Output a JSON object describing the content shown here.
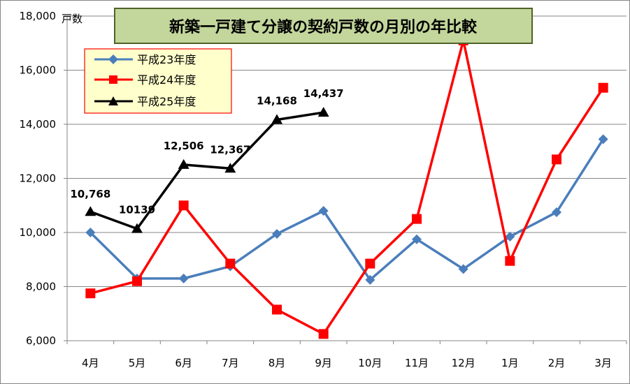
{
  "chart_data": {
    "type": "line",
    "title": "新築一戸建て分譲の契約戸数の月別の年比較",
    "ylabel": "戸数",
    "xlabel": "",
    "categories": [
      "4月",
      "5月",
      "6月",
      "7月",
      "8月",
      "9月",
      "10月",
      "11月",
      "12月",
      "1月",
      "2月",
      "3月"
    ],
    "ylim": [
      6000,
      18000
    ],
    "yticks": [
      "6,000",
      "8,000",
      "10,000",
      "12,000",
      "14,000",
      "16,000",
      "18,000"
    ],
    "ytick_values": [
      6000,
      8000,
      10000,
      12000,
      14000,
      16000,
      18000
    ],
    "grid": true,
    "legend_position": "top-left",
    "series": [
      {
        "name": "平成23年度",
        "color": "#4a7ebb",
        "marker": "diamond",
        "values": [
          10000,
          8300,
          8300,
          8750,
          9950,
          10800,
          8250,
          9750,
          8650,
          9850,
          10750,
          13450
        ]
      },
      {
        "name": "平成24年度",
        "color": "#ff0000",
        "marker": "square",
        "values": [
          7750,
          8200,
          11000,
          8850,
          7150,
          6250,
          8850,
          10500,
          17100,
          8950,
          12700,
          15350
        ]
      },
      {
        "name": "平成25年度",
        "color": "#000000",
        "marker": "triangle",
        "values": [
          10768,
          10139,
          12506,
          12367,
          14168,
          14437,
          null,
          null,
          null,
          null,
          null,
          null
        ],
        "data_labels": [
          "10,768",
          "10139",
          "12,506",
          "12,367",
          "14,168",
          "14,437"
        ]
      }
    ]
  }
}
